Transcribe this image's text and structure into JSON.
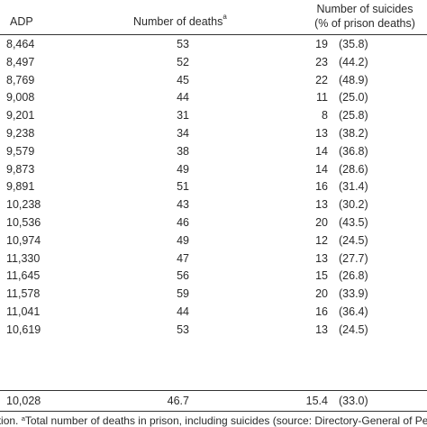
{
  "headers": {
    "adp": "ADP",
    "deaths": "Number of deaths",
    "deaths_sup": "a",
    "suicides_line1": "Number of suicides",
    "suicides_line2": "(% of prison deaths)"
  },
  "rows": [
    {
      "adp": "8,464",
      "deaths": "53",
      "suicides": "19",
      "pct": "(35.8)"
    },
    {
      "adp": "8,497",
      "deaths": "52",
      "suicides": "23",
      "pct": "(44.2)"
    },
    {
      "adp": "8,769",
      "deaths": "45",
      "suicides": "22",
      "pct": "(48.9)"
    },
    {
      "adp": "9,008",
      "deaths": "44",
      "suicides": "11",
      "pct": "(25.0)"
    },
    {
      "adp": "9,201",
      "deaths": "31",
      "suicides": "8",
      "pct": "(25.8)"
    },
    {
      "adp": "9,238",
      "deaths": "34",
      "suicides": "13",
      "pct": "(38.2)"
    },
    {
      "adp": "9,579",
      "deaths": "38",
      "suicides": "14",
      "pct": "(36.8)"
    },
    {
      "adp": "9,873",
      "deaths": "49",
      "suicides": "14",
      "pct": "(28.6)"
    },
    {
      "adp": "9,891",
      "deaths": "51",
      "suicides": "16",
      "pct": "(31.4)"
    },
    {
      "adp": "10,238",
      "deaths": "43",
      "suicides": "13",
      "pct": "(30.2)"
    },
    {
      "adp": "10,536",
      "deaths": "46",
      "suicides": "20",
      "pct": "(43.5)"
    },
    {
      "adp": "10,974",
      "deaths": "49",
      "suicides": "12",
      "pct": "(24.5)"
    },
    {
      "adp": "11,330",
      "deaths": "47",
      "suicides": "13",
      "pct": "(27.7)"
    },
    {
      "adp": "11,645",
      "deaths": "56",
      "suicides": "15",
      "pct": "(26.8)"
    },
    {
      "adp": "11,578",
      "deaths": "59",
      "suicides": "20",
      "pct": "(33.9)"
    },
    {
      "adp": "11,041",
      "deaths": "44",
      "suicides": "16",
      "pct": "(36.4)"
    },
    {
      "adp": "10,619",
      "deaths": "53",
      "suicides": "13",
      "pct": "(24.5)"
    }
  ],
  "average": {
    "adp": "10,028",
    "deaths": "46.7",
    "suicides": "15.4",
    "pct": "(33.0)"
  },
  "footnote": {
    "lead": "pulation. ",
    "sup": "a",
    "text": "Total number of deaths in prison, including suicides (source: Directory-General of Pe"
  }
}
